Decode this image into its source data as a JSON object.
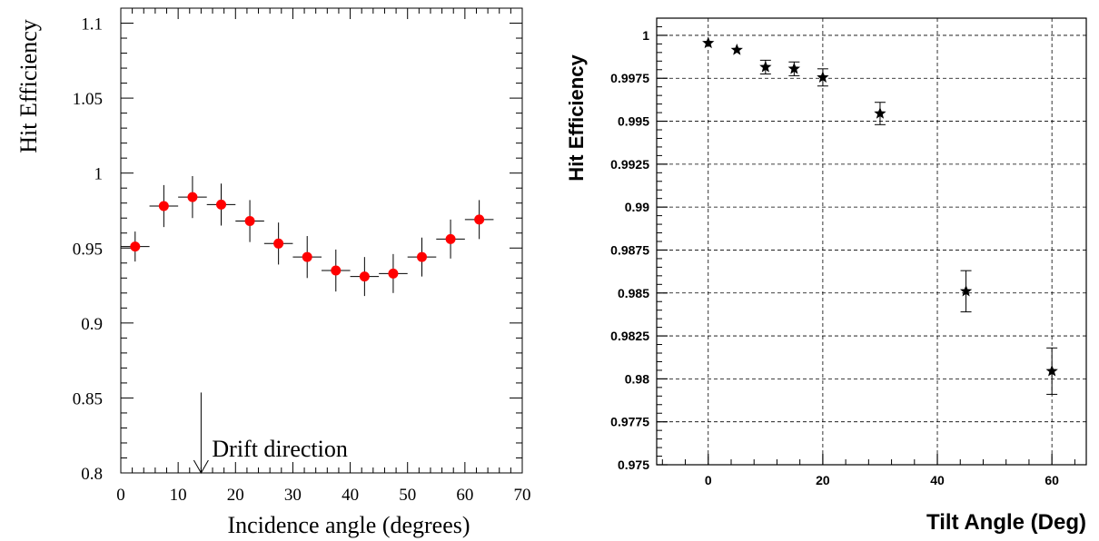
{
  "chart_data": [
    {
      "type": "scatter",
      "title": "",
      "xlabel": "Incidence angle (degrees)",
      "ylabel": "Hit Efficiency",
      "xlim": [
        0,
        70
      ],
      "ylim": [
        0.8,
        1.11
      ],
      "xticks": [
        0,
        10,
        20,
        30,
        40,
        50,
        60,
        70
      ],
      "xtick_labels": [
        "0",
        "10",
        "20",
        "30",
        "40",
        "50",
        "60",
        "70"
      ],
      "yticks": [
        0.8,
        0.85,
        0.9,
        0.95,
        1.0,
        1.05,
        1.1
      ],
      "ytick_labels": [
        "0.8",
        "0.85",
        "0.9",
        "0.95",
        "1",
        "1.05",
        "1.1"
      ],
      "grid": false,
      "marker_color": "#ff0000",
      "x_half_width": 2.5,
      "series": [
        {
          "x": [
            2.5,
            7.5,
            12.5,
            17.5,
            22.5,
            27.5,
            32.5,
            37.5,
            42.5,
            47.5,
            52.5,
            57.5,
            62.5
          ],
          "y": [
            0.951,
            0.978,
            0.984,
            0.979,
            0.968,
            0.953,
            0.944,
            0.935,
            0.931,
            0.933,
            0.944,
            0.956,
            0.969
          ],
          "yerr": [
            0.01,
            0.014,
            0.014,
            0.014,
            0.014,
            0.014,
            0.014,
            0.014,
            0.013,
            0.013,
            0.013,
            0.013,
            0.013
          ]
        }
      ],
      "annotation": {
        "text": "Drift direction",
        "x": 14,
        "y_from": 0.85,
        "y_to": 0.8
      }
    },
    {
      "type": "scatter",
      "title": "",
      "xlabel": "Tilt Angle (Deg)",
      "ylabel": "Hit Efficiency",
      "xlim": [
        -9,
        66
      ],
      "ylim": [
        0.975,
        1.001
      ],
      "xticks": [
        0,
        20,
        40,
        60
      ],
      "xtick_labels": [
        "0",
        "20",
        "40",
        "60"
      ],
      "yticks": [
        0.975,
        0.9775,
        0.98,
        0.9825,
        0.985,
        0.9875,
        0.99,
        0.9925,
        0.995,
        0.9975,
        1.0
      ],
      "ytick_labels": [
        "0.975",
        "0.9775",
        "0.98",
        "0.9825",
        "0.985",
        "0.9875",
        "0.99",
        "0.9925",
        "0.995",
        "0.9975",
        "1"
      ],
      "grid": true,
      "marker": "star",
      "marker_color": "#000000",
      "series": [
        {
          "x": [
            0,
            5,
            10,
            15,
            20,
            30,
            45,
            60
          ],
          "y": [
            0.99955,
            0.99915,
            0.99815,
            0.99805,
            0.99755,
            0.99545,
            0.9851,
            0.98045
          ],
          "yerr": [
            0.0,
            0.0,
            0.0004,
            0.0004,
            0.0005,
            0.00065,
            0.0012,
            0.00135
          ]
        }
      ]
    }
  ]
}
